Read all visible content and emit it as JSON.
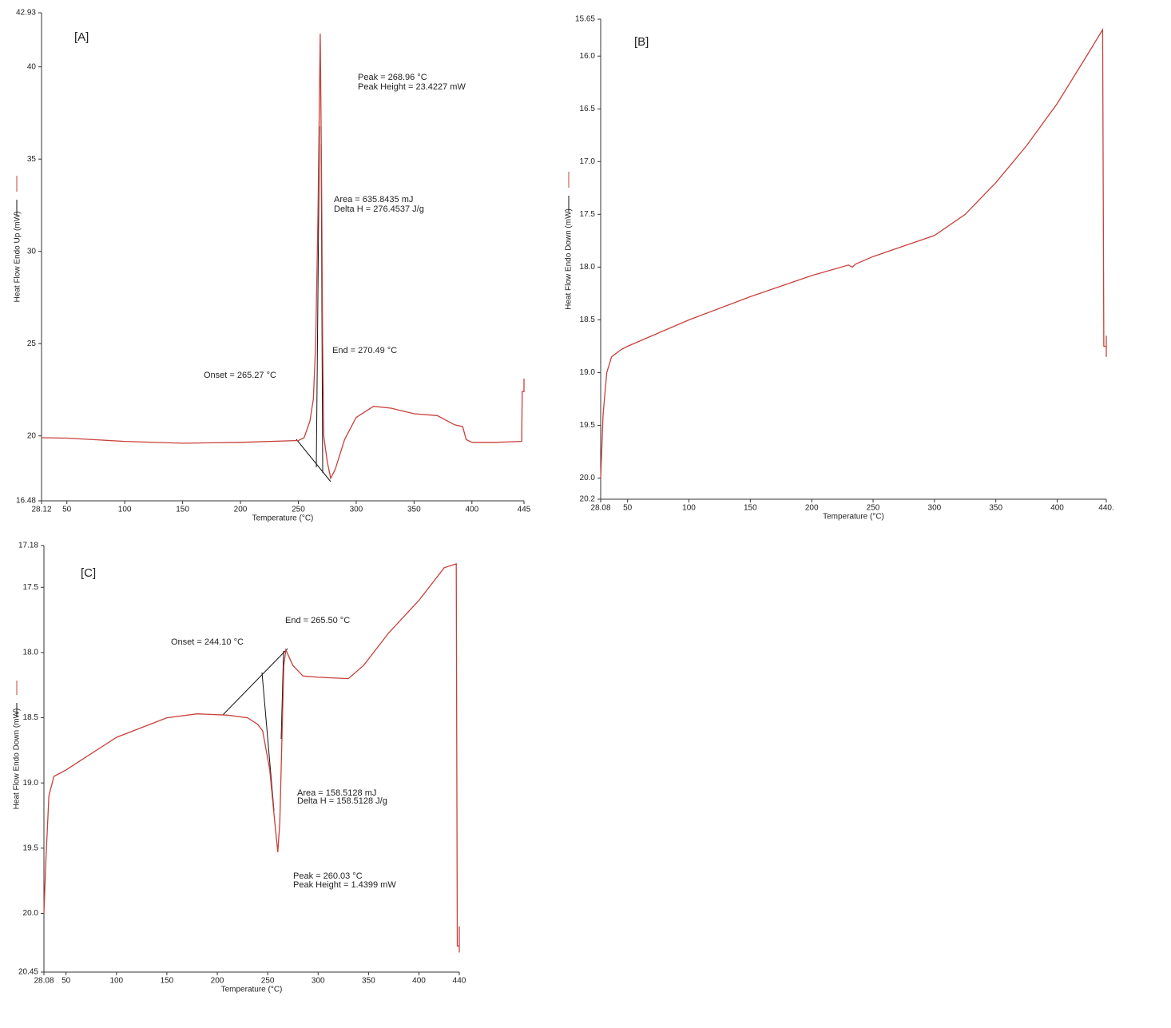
{
  "chart_data": [
    {
      "type": "line",
      "label": "[A]",
      "x_label": "Temperature (°C)",
      "y_label": "Heat Flow Endo Up (mW)",
      "color": "#c8403a",
      "xlim": [
        28.12,
        445
      ],
      "xticks": [
        28.12,
        50,
        100,
        150,
        200,
        250,
        300,
        350,
        400,
        445
      ],
      "ylim": [
        16.48,
        42.93
      ],
      "yticks": [
        16.48,
        20,
        25,
        30,
        35,
        40,
        42.93
      ],
      "annotations": [
        "Peak = 268.96 °C",
        "Peak Height = 23.4227 mW",
        "Area = 635.8435 mJ",
        "Delta H = 276.4537 J/g",
        "End = 270.49 °C",
        "Onset = 265.27 °C"
      ],
      "x": [
        28.12,
        50,
        100,
        150,
        200,
        250,
        255,
        260,
        263,
        265,
        267,
        268.96,
        270,
        271,
        272,
        275,
        278,
        282,
        290,
        300,
        315,
        330,
        350,
        370,
        385,
        392,
        395,
        400,
        420,
        443,
        443.5,
        445,
        445
      ],
      "values": [
        19.9,
        19.88,
        19.7,
        19.6,
        19.65,
        19.75,
        19.9,
        20.8,
        22,
        25,
        32,
        41.8,
        35,
        25,
        20,
        18.6,
        17.7,
        18.2,
        19.8,
        21,
        21.6,
        21.5,
        21.2,
        21.1,
        20.6,
        20.5,
        19.8,
        19.65,
        19.65,
        19.7,
        22.4,
        22.4,
        23.1
      ]
    },
    {
      "type": "line",
      "label": "[B]",
      "x_label": "Temperature (°C)",
      "y_label": "Heat Flow Endo Down (mW)",
      "color": "#c8403a",
      "xlim": [
        28.08,
        440
      ],
      "xticks": [
        28.08,
        50,
        100,
        150,
        200,
        250,
        300,
        350,
        400,
        {
          "value": 440,
          "label": "440."
        }
      ],
      "ylim": [
        20.2,
        15.65
      ],
      "yticks": [
        15.65,
        {
          "value": 16,
          "label": "16.0"
        },
        16.5,
        {
          "value": 17,
          "label": "17.0"
        },
        17.5,
        {
          "value": 18,
          "label": "18.0"
        },
        18.5,
        {
          "value": 19,
          "label": "19.0"
        },
        19.5,
        {
          "value": 20,
          "label": "20.0"
        },
        20.2
      ],
      "x": [
        28.08,
        30,
        33,
        37,
        45,
        50,
        100,
        150,
        200,
        230,
        233,
        236,
        250,
        275,
        300,
        325,
        350,
        375,
        400,
        425,
        437,
        438,
        440,
        440,
        440
      ],
      "values": [
        20.0,
        19.4,
        19.0,
        18.85,
        18.78,
        18.75,
        18.5,
        18.28,
        18.08,
        17.98,
        18.0,
        17.97,
        17.9,
        17.8,
        17.7,
        17.5,
        17.2,
        16.85,
        16.45,
        15.98,
        15.75,
        18.75,
        18.75,
        18.65,
        18.85
      ]
    },
    {
      "type": "line",
      "label": "[C]",
      "x_label": "Temperature (°C)",
      "y_label": "Heat Flow Endo Down (mW)",
      "color": "#c8403a",
      "xlim": [
        28.08,
        440
      ],
      "xticks": [
        28.08,
        50,
        100,
        150,
        200,
        250,
        300,
        350,
        400,
        440
      ],
      "ylim": [
        20.45,
        17.18
      ],
      "yticks": [
        17.18,
        17.5,
        {
          "value": 18,
          "label": "18.0"
        },
        18.5,
        {
          "value": 19,
          "label": "19.0"
        },
        19.5,
        {
          "value": 20,
          "label": "20.0"
        },
        20.45
      ],
      "annotations": [
        "End = 265.50 °C",
        "Onset = 244.10 °C",
        "Area = 158.5128 mJ",
        "Delta H = 158.5128 J/g",
        "Peak = 260.03 °C",
        "Peak Height = 1.4399 mW"
      ],
      "x": [
        28.08,
        30,
        33,
        38,
        50,
        60,
        100,
        150,
        180,
        210,
        230,
        240,
        245,
        252,
        257,
        260.03,
        262,
        264,
        266,
        268,
        275,
        285,
        300,
        330,
        345,
        370,
        400,
        425,
        437,
        438,
        440,
        440,
        440
      ],
      "values": [
        20.0,
        19.6,
        19.1,
        18.95,
        18.9,
        18.85,
        18.65,
        18.5,
        18.47,
        18.48,
        18.5,
        18.55,
        18.6,
        18.9,
        19.3,
        19.53,
        19.3,
        18.7,
        18.1,
        17.98,
        18.1,
        18.18,
        18.19,
        18.2,
        18.1,
        17.85,
        17.6,
        17.35,
        17.32,
        20.25,
        20.25,
        20.1,
        20.3
      ]
    }
  ]
}
